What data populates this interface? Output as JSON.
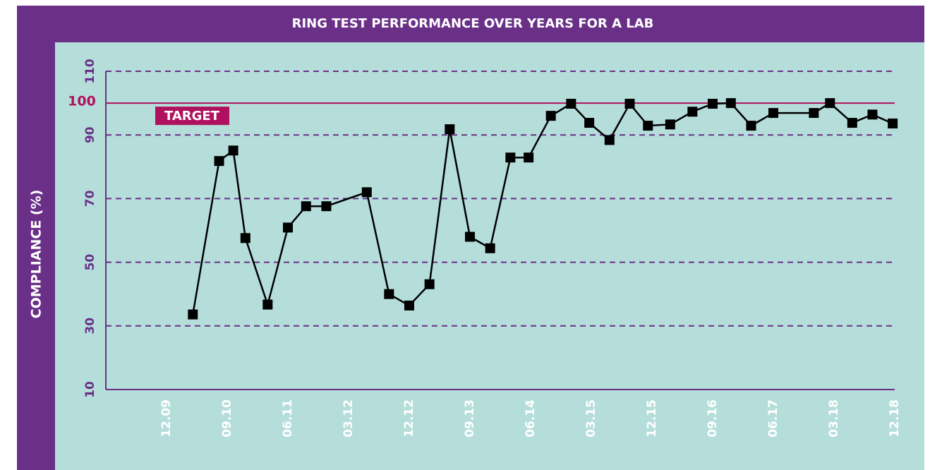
{
  "chart_data": {
    "type": "line",
    "title": "RING TEST PERFORMANCE OVER YEARS FOR A LAB",
    "y_label": "COMPLIANCE (%)",
    "xlim": [
      -3,
      36
    ],
    "xticks": [
      {
        "value": 0,
        "label": "12.09"
      },
      {
        "value": 3,
        "label": "09.10"
      },
      {
        "value": 6,
        "label": "06.11"
      },
      {
        "value": 9,
        "label": "03.12"
      },
      {
        "value": 12,
        "label": "12.12"
      },
      {
        "value": 15,
        "label": "09.13"
      },
      {
        "value": 18,
        "label": "06.14"
      },
      {
        "value": 21,
        "label": "03.15"
      },
      {
        "value": 24,
        "label": "12.15"
      },
      {
        "value": 27,
        "label": "09.16"
      },
      {
        "value": 30,
        "label": "06.17"
      },
      {
        "value": 33,
        "label": "03.18"
      },
      {
        "value": 36,
        "label": "12.18"
      }
    ],
    "ylim": [
      10,
      110
    ],
    "yticks": [
      10,
      30,
      50,
      70,
      90,
      110
    ],
    "grid": true,
    "target": {
      "value": 100,
      "label": "TARGET",
      "color": "#b0115e"
    },
    "series": [
      {
        "color": "#000000",
        "x": [
          1.3,
          2.6,
          3.3,
          3.9,
          5.0,
          6.0,
          6.9,
          7.9,
          9.9,
          11.0,
          12.0,
          13.0,
          14.0,
          15.0,
          16.0,
          17.0,
          17.9,
          19.0,
          20.0,
          20.9,
          21.9,
          22.9,
          23.8,
          24.9,
          26.0,
          27.0,
          27.9,
          28.9,
          30.0,
          32.0,
          32.8,
          33.9,
          34.9,
          35.9
        ],
        "values": [
          33.6,
          81.8,
          85.1,
          57.6,
          36.7,
          60.9,
          67.6,
          67.6,
          72.0,
          40.0,
          36.4,
          43.1,
          91.8,
          58.0,
          54.4,
          82.9,
          82.9,
          96.0,
          99.8,
          93.8,
          88.4,
          99.8,
          92.9,
          93.3,
          97.3,
          99.8,
          100.0,
          92.9,
          96.9,
          96.9,
          100.0,
          93.8,
          96.4,
          93.6
        ]
      }
    ]
  }
}
